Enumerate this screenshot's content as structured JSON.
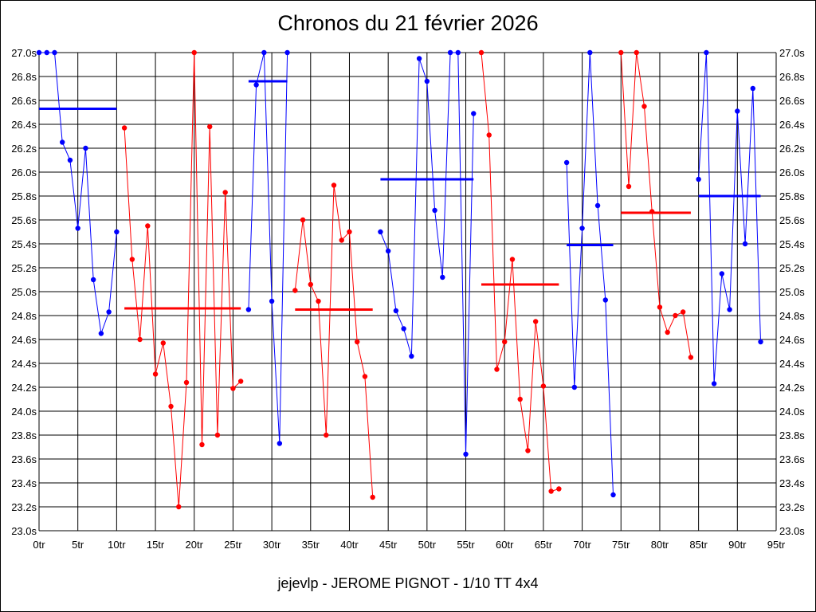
{
  "chart_data": {
    "type": "line",
    "title": "Chronos du 21 février 2026",
    "footer": "jejevlp - JEROME PIGNOT - 1/10 TT 4x4",
    "xlabel": "",
    "ylabel": "",
    "xlim": [
      0,
      95
    ],
    "ylim": [
      23.0,
      27.0
    ],
    "x_ticks": [
      "0tr",
      "5tr",
      "10tr",
      "15tr",
      "20tr",
      "25tr",
      "30tr",
      "35tr",
      "40tr",
      "45tr",
      "50tr",
      "55tr",
      "60tr",
      "65tr",
      "70tr",
      "75tr",
      "80tr",
      "85tr",
      "90tr",
      "95tr"
    ],
    "y_ticks": [
      "23.0s",
      "23.2s",
      "23.4s",
      "23.6s",
      "23.8s",
      "24.0s",
      "24.2s",
      "24.4s",
      "24.6s",
      "24.8s",
      "25.0s",
      "25.2s",
      "25.4s",
      "25.6s",
      "25.8s",
      "26.0s",
      "26.2s",
      "26.4s",
      "26.6s",
      "26.8s",
      "27.0s"
    ],
    "grid": true,
    "colors": {
      "blue": "#0000ff",
      "red": "#ff0000"
    },
    "segments": [
      {
        "color": "#0000ff",
        "x": [
          0,
          1,
          2,
          3,
          4,
          5,
          6,
          7,
          8,
          9,
          10
        ],
        "y": [
          27.0,
          27.0,
          27.0,
          26.25,
          26.1,
          25.53,
          26.2,
          25.1,
          24.65,
          24.83,
          25.5
        ],
        "mean": 26.53
      },
      {
        "color": "#ff0000",
        "x": [
          11,
          12,
          13,
          14,
          15,
          16,
          17,
          18,
          19,
          20,
          21,
          22,
          23,
          24,
          25,
          26
        ],
        "y": [
          26.37,
          25.27,
          24.6,
          25.55,
          24.31,
          24.57,
          24.04,
          23.2,
          24.24,
          27.0,
          23.72,
          26.38,
          23.8,
          25.83,
          24.19,
          24.25
        ],
        "mean": 24.86
      },
      {
        "color": "#0000ff",
        "x": [
          27,
          28,
          29,
          30,
          31,
          32
        ],
        "y": [
          24.85,
          26.73,
          27.0,
          24.92,
          23.73,
          27.0
        ],
        "mean": 26.76
      },
      {
        "color": "#ff0000",
        "x": [
          33,
          34,
          35,
          36,
          37,
          38,
          39,
          40,
          41,
          42,
          43
        ],
        "y": [
          25.01,
          25.6,
          25.06,
          24.92,
          23.8,
          25.89,
          25.43,
          25.5,
          24.58,
          24.29,
          23.28
        ],
        "mean": 24.85
      },
      {
        "color": "#0000ff",
        "x": [
          44,
          45,
          46,
          47,
          48,
          49,
          50,
          51,
          52,
          53,
          54,
          55,
          56
        ],
        "y": [
          25.5,
          25.34,
          24.84,
          24.69,
          24.46,
          26.95,
          26.76,
          25.68,
          25.12,
          27.0,
          27.0,
          23.64,
          26.49
        ],
        "mean": 25.94
      },
      {
        "color": "#ff0000",
        "x": [
          57,
          58,
          59,
          60,
          61,
          62,
          63,
          64,
          65,
          66,
          67
        ],
        "y": [
          27.0,
          26.31,
          24.35,
          24.58,
          25.27,
          24.1,
          23.67,
          24.75,
          24.21,
          23.33,
          23.35
        ],
        "mean": 25.06
      },
      {
        "color": "#0000ff",
        "x": [
          68,
          69,
          70,
          71,
          72,
          73,
          74
        ],
        "y": [
          26.08,
          24.2,
          25.53,
          27.0,
          25.72,
          24.93,
          23.3
        ],
        "mean": 25.39
      },
      {
        "color": "#ff0000",
        "x": [
          75,
          76,
          77,
          78,
          79,
          80,
          81,
          82,
          83,
          84
        ],
        "y": [
          27.0,
          25.88,
          27.0,
          26.55,
          25.67,
          24.87,
          24.66,
          24.8,
          24.83,
          24.45
        ],
        "mean": 25.66
      },
      {
        "color": "#0000ff",
        "x": [
          85,
          86,
          87,
          88,
          89,
          90,
          91,
          92,
          93
        ],
        "y": [
          25.94,
          27.0,
          24.23,
          25.15,
          24.85,
          26.51,
          25.4,
          26.7,
          24.58
        ],
        "mean": 25.8
      }
    ]
  }
}
